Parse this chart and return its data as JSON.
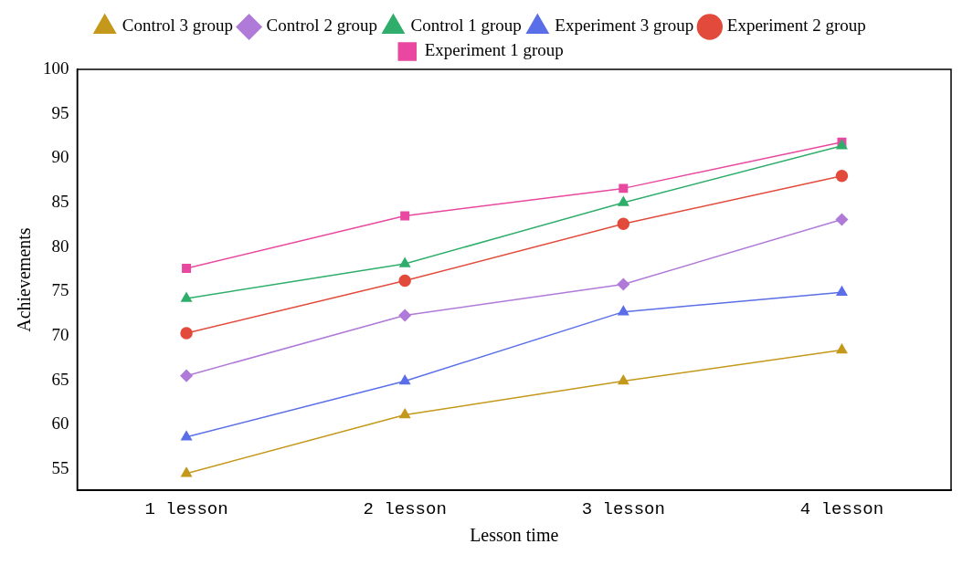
{
  "chart_data": {
    "type": "line",
    "xlabel": "Lesson time",
    "ylabel": "Achievements",
    "categories": [
      "1 lesson",
      "2 lesson",
      "3 lesson",
      "4 lesson"
    ],
    "series": [
      {
        "name": "Experiment 1 group",
        "color": "#e8489f",
        "marker": "square",
        "values": [
          77.6,
          83.5,
          86.6,
          91.8
        ]
      },
      {
        "name": "Experiment 2 group",
        "color": "#e24a3b",
        "marker": "circle",
        "values": [
          70.3,
          76.2,
          82.6,
          88.0
        ]
      },
      {
        "name": "Experiment 3 group",
        "color": "#5a6ee8",
        "marker": "triangle",
        "values": [
          58.6,
          64.9,
          72.7,
          74.9
        ]
      },
      {
        "name": "Control 1 group",
        "color": "#2fae6b",
        "marker": "triangle",
        "values": [
          74.2,
          78.1,
          85.0,
          91.4
        ]
      },
      {
        "name": "Control 2 group",
        "color": "#b07ad8",
        "marker": "diamond",
        "values": [
          65.5,
          72.3,
          75.8,
          83.1
        ]
      },
      {
        "name": "Control 3 group",
        "color": "#c4981a",
        "marker": "triangle",
        "values": [
          54.5,
          61.1,
          64.9,
          68.4
        ]
      }
    ],
    "ylim": [
      52.6,
      100
    ],
    "yticks": [
      55,
      60,
      65,
      70,
      75,
      80,
      85,
      90,
      95,
      100
    ],
    "grid": false,
    "legend": "top",
    "line_style": "solid"
  }
}
